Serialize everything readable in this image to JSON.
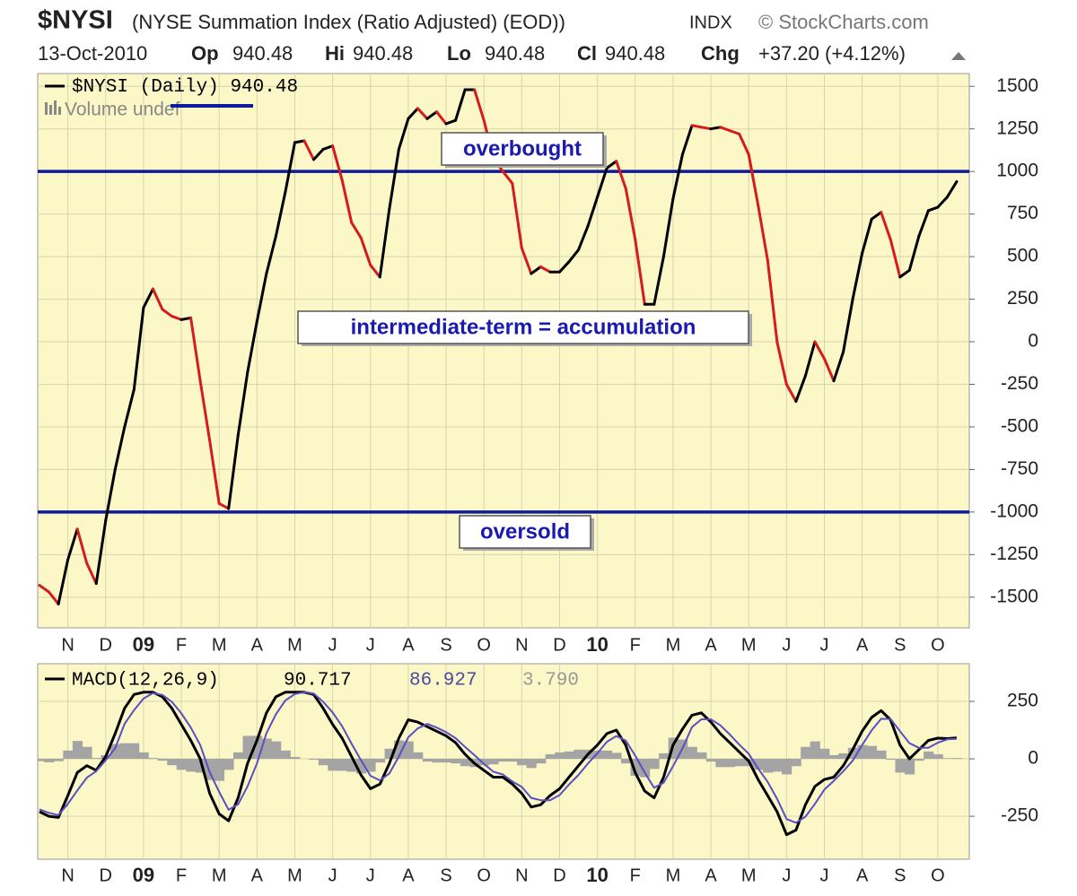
{
  "chart_data": [
    {
      "type": "line",
      "title": "$NYSI",
      "subtitle": "(NYSE Summation Index (Ratio Adjusted) (EOD))",
      "exchange": "INDX",
      "source": "© StockCharts.com",
      "quote": {
        "date": "13-Oct-2010",
        "items": [
          {
            "label": "Op",
            "value": 940.48
          },
          {
            "label": "Hi",
            "value": 940.48
          },
          {
            "label": "Lo",
            "value": 940.48
          },
          {
            "label": "Cl",
            "value": 940.48
          },
          {
            "label": "Chg",
            "value": "+37.20 (+4.12%)"
          }
        ]
      },
      "volume_legend": "Volume undef",
      "annotations": [
        "overbought",
        "intermediate-term = accumulation",
        "oversold"
      ],
      "reference_lines": [
        1000,
        -1000
      ],
      "reference_color": "#0d1a9c",
      "background": "#fbf7c6",
      "grid": true,
      "categories": [
        null,
        null,
        null,
        "N",
        null,
        null,
        null,
        "D",
        null,
        null,
        null,
        "09",
        null,
        null,
        null,
        "F",
        null,
        null,
        null,
        "M",
        null,
        null,
        null,
        "A",
        null,
        null,
        null,
        "M",
        null,
        null,
        null,
        "J",
        null,
        null,
        null,
        "J",
        null,
        null,
        null,
        "A",
        null,
        null,
        null,
        "S",
        null,
        null,
        null,
        "O",
        null,
        null,
        null,
        "N",
        null,
        null,
        null,
        "D",
        null,
        null,
        null,
        "10",
        null,
        null,
        null,
        "F",
        null,
        null,
        null,
        "M",
        null,
        null,
        null,
        "A",
        null,
        null,
        null,
        "M",
        null,
        null,
        null,
        "J",
        null,
        null,
        null,
        "J",
        null,
        null,
        null,
        "A",
        null,
        null,
        null,
        "S",
        null,
        null,
        null,
        "O",
        null,
        null
      ],
      "series": [
        {
          "name": "$NYSI (Daily)",
          "color": "#000000",
          "down_color": "#d41c1c",
          "values": [
            -1430,
            -1470,
            -1540,
            -1280,
            -1100,
            -1300,
            -1420,
            -1050,
            -750,
            -500,
            -280,
            200,
            310,
            190,
            150,
            130,
            140,
            -230,
            -580,
            -950,
            -980,
            -550,
            -180,
            120,
            400,
            620,
            880,
            1170,
            1180,
            1070,
            1130,
            1150,
            950,
            700,
            610,
            450,
            380,
            780,
            1130,
            1310,
            1370,
            1310,
            1350,
            1280,
            1300,
            1480,
            1480,
            1300,
            1080,
            1000,
            930,
            550,
            400,
            440,
            410,
            410,
            470,
            540,
            680,
            850,
            1020,
            1060,
            900,
            600,
            220,
            220,
            500,
            840,
            1100,
            1270,
            1260,
            1250,
            1260,
            1240,
            1220,
            1100,
            800,
            480,
            0,
            -250,
            -350,
            -200,
            0,
            -100,
            -230,
            -60,
            250,
            520,
            720,
            760,
            600,
            380,
            420,
            620,
            770,
            790,
            850,
            940.48
          ]
        }
      ],
      "ylim": [
        -1680,
        1575
      ],
      "yticks": [
        1500,
        1250,
        1000,
        750,
        500,
        250,
        0,
        -250,
        -500,
        -750,
        -1000,
        -1250,
        -1500
      ]
    },
    {
      "type": "line",
      "background": "#fbf7c6",
      "grid": true,
      "categories": [
        null,
        null,
        null,
        "N",
        null,
        null,
        null,
        "D",
        null,
        null,
        null,
        "09",
        null,
        null,
        null,
        "F",
        null,
        null,
        null,
        "M",
        null,
        null,
        null,
        "A",
        null,
        null,
        null,
        "M",
        null,
        null,
        null,
        "J",
        null,
        null,
        null,
        "J",
        null,
        null,
        null,
        "A",
        null,
        null,
        null,
        "S",
        null,
        null,
        null,
        "O",
        null,
        null,
        null,
        "N",
        null,
        null,
        null,
        "D",
        null,
        null,
        null,
        "10",
        null,
        null,
        null,
        "F",
        null,
        null,
        null,
        "M",
        null,
        null,
        null,
        "A",
        null,
        null,
        null,
        "M",
        null,
        null,
        null,
        "J",
        null,
        null,
        null,
        "J",
        null,
        null,
        null,
        "A",
        null,
        null,
        null,
        "S",
        null,
        null,
        null,
        "O",
        null,
        null
      ],
      "series": [
        {
          "name": "MACD(12,26,9)",
          "type": "line",
          "color": "#000000",
          "values": [
            -230,
            -250,
            -255,
            -160,
            -60,
            -30,
            -50,
            10,
            110,
            220,
            280,
            290,
            290,
            270,
            220,
            150,
            80,
            0,
            -150,
            -240,
            -270,
            -170,
            -20,
            80,
            200,
            270,
            290,
            290,
            290,
            280,
            220,
            150,
            90,
            10,
            -70,
            -130,
            -110,
            -20,
            90,
            170,
            160,
            140,
            120,
            100,
            70,
            20,
            -20,
            -50,
            -80,
            -80,
            -110,
            -150,
            -210,
            -200,
            -160,
            -130,
            -80,
            -30,
            20,
            60,
            110,
            125,
            60,
            -60,
            -140,
            -170,
            -80,
            60,
            130,
            190,
            200,
            160,
            110,
            70,
            30,
            -10,
            -90,
            -160,
            -230,
            -330,
            -310,
            -200,
            -120,
            -90,
            -80,
            -30,
            40,
            120,
            180,
            210,
            170,
            60,
            0,
            40,
            80,
            90,
            88,
            90.717
          ]
        },
        {
          "type": "line",
          "color": "#5a4ec4",
          "values": [
            -220,
            -235,
            -245,
            -196,
            -138,
            -82,
            -54,
            -6,
            46,
            152,
            212,
            262,
            286,
            278,
            248,
            198,
            136,
            60,
            -58,
            -144,
            -222,
            -198,
            -120,
            -20,
            112,
            194,
            254,
            282,
            290,
            284,
            248,
            202,
            142,
            66,
            -6,
            -74,
            -94,
            -64,
            10,
            94,
            132,
            152,
            136,
            116,
            90,
            52,
            16,
            -22,
            -56,
            -68,
            -98,
            -122,
            -170,
            -180,
            -180,
            -158,
            -112,
            -70,
            -20,
            24,
            74,
            99,
            80,
            14,
            -60,
            -126,
            -104,
            -32,
            46,
            138,
            172,
            172,
            146,
            106,
            62,
            22,
            -42,
            -100,
            -174,
            -262,
            -278,
            -252,
            -196,
            -134,
            -96,
            -54,
            -8,
            60,
            124,
            174,
            174,
            120,
            68,
            48,
            48,
            70,
            85,
            86.927
          ]
        },
        {
          "type": "bar",
          "color": "#a4a4a4",
          "values": [
            -10,
            -15,
            -10,
            36,
            78,
            52,
            4,
            16,
            64,
            68,
            68,
            28,
            4,
            -8,
            -28,
            -48,
            -56,
            -60,
            -92,
            -96,
            -48,
            28,
            100,
            100,
            88,
            76,
            36,
            8,
            0,
            -4,
            -28,
            -52,
            -52,
            -56,
            -64,
            -56,
            -16,
            44,
            80,
            76,
            28,
            -12,
            -16,
            -16,
            -20,
            -32,
            -36,
            -28,
            -24,
            -12,
            -12,
            -28,
            -40,
            -20,
            20,
            28,
            32,
            40,
            40,
            36,
            36,
            26,
            -20,
            -74,
            -80,
            -44,
            24,
            92,
            84,
            52,
            28,
            -12,
            -36,
            -36,
            -32,
            -32,
            -48,
            -60,
            -56,
            -68,
            -32,
            52,
            76,
            44,
            16,
            24,
            48,
            60,
            56,
            36,
            -4,
            -60,
            -68,
            -8,
            32,
            20,
            3,
            3.79
          ],
          "value_labels": [
            null,
            null,
            null,
            null,
            null,
            null,
            null,
            null,
            null,
            null,
            null,
            null,
            null,
            null,
            null,
            null,
            null,
            null,
            null,
            null,
            null,
            null,
            null,
            null,
            null,
            null,
            null,
            null,
            null,
            null,
            null,
            null,
            null,
            null,
            null,
            null,
            null,
            null,
            null,
            null,
            null,
            null,
            null,
            null,
            null,
            null,
            null,
            null,
            null,
            null,
            null,
            null,
            null,
            null,
            null,
            null,
            null,
            null,
            null,
            null,
            null,
            null,
            null,
            null,
            null,
            null,
            null,
            null,
            null,
            null,
            null,
            null,
            null,
            null,
            null,
            null,
            null,
            null,
            null,
            null,
            null,
            null,
            null,
            null,
            null,
            null,
            null,
            null,
            null,
            null,
            null,
            null,
            null,
            null,
            null,
            null,
            null,
            "3.790"
          ]
        }
      ],
      "ylim": [
        -437,
        414
      ],
      "yticks": [
        250,
        0,
        -250
      ]
    }
  ]
}
